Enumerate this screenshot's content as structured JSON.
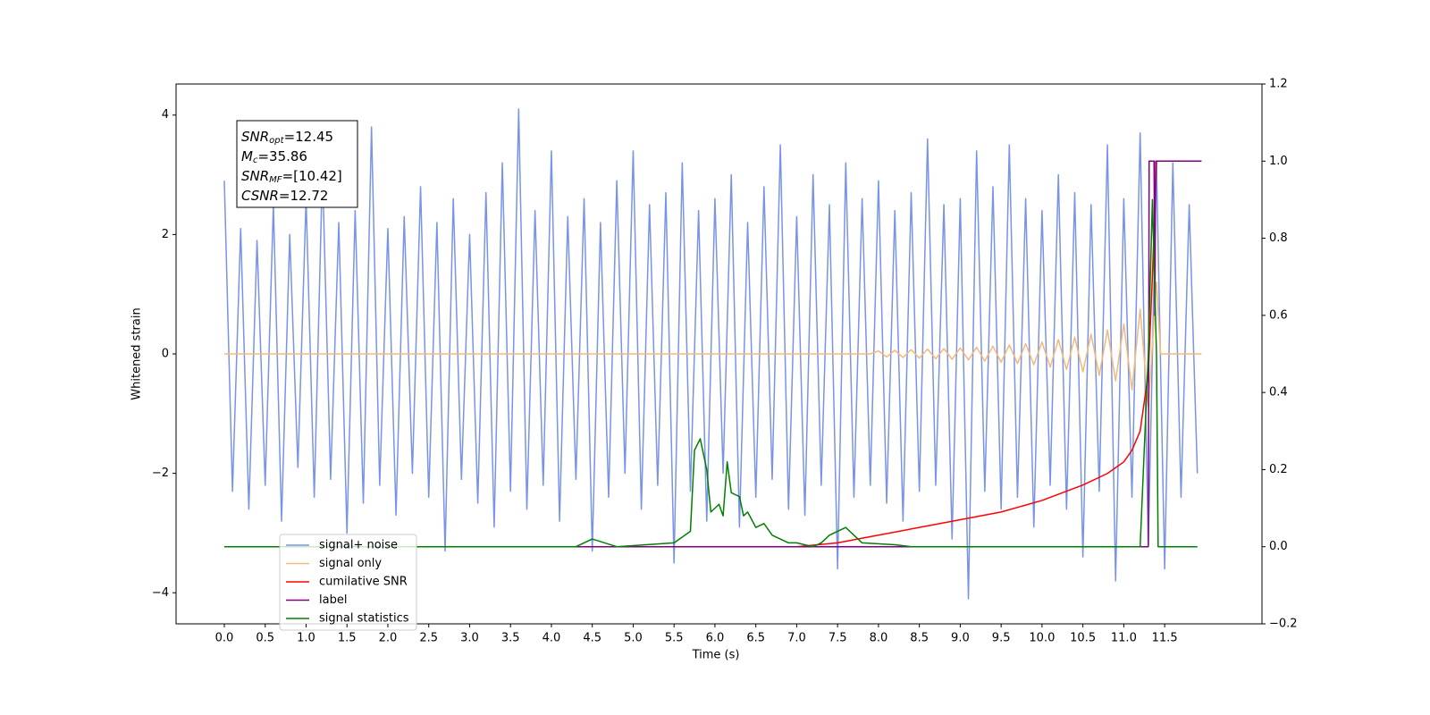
{
  "chart_data": {
    "type": "line",
    "xlabel": "Time (s)",
    "ylabel": "Whitened strain",
    "xlim": [
      -0.59,
      12.69
    ],
    "ylim": [
      -4.52,
      4.52
    ],
    "y2lim": [
      -0.2,
      1.2
    ],
    "xticks": [
      {
        "value": 0,
        "label": "0.0"
      },
      {
        "value": 0.5,
        "label": "0.5"
      },
      {
        "value": 1,
        "label": "1.0"
      },
      {
        "value": 1.5,
        "label": "1.5"
      },
      {
        "value": 2,
        "label": "2.0"
      },
      {
        "value": 2.5,
        "label": "2.5"
      },
      {
        "value": 3,
        "label": "3.0"
      },
      {
        "value": 3.5,
        "label": "3.5"
      },
      {
        "value": 4,
        "label": "4.0"
      },
      {
        "value": 4.5,
        "label": "4.5"
      },
      {
        "value": 5,
        "label": "5.0"
      },
      {
        "value": 5.5,
        "label": "5.5"
      },
      {
        "value": 6,
        "label": "6.0"
      },
      {
        "value": 6.5,
        "label": "6.5"
      },
      {
        "value": 7,
        "label": "7.0"
      },
      {
        "value": 7.5,
        "label": "7.5"
      },
      {
        "value": 8,
        "label": "8.0"
      },
      {
        "value": 8.5,
        "label": "8.5"
      },
      {
        "value": 9,
        "label": "9.0"
      },
      {
        "value": 9.5,
        "label": "9.5"
      },
      {
        "value": 10,
        "label": "10.0"
      },
      {
        "value": 10.5,
        "label": "10.5"
      },
      {
        "value": 11,
        "label": "11.0"
      },
      {
        "value": 11.5,
        "label": "11.5"
      }
    ],
    "yticks": [
      {
        "value": -4,
        "label": "−4"
      },
      {
        "value": -2,
        "label": "−2"
      },
      0,
      2,
      4
    ],
    "y2ticks": [
      {
        "value": -0.2,
        "label": "−0.2"
      },
      {
        "value": 0,
        "label": "0.0"
      },
      0.2,
      0.4,
      0.6,
      0.8,
      {
        "value": 1,
        "label": "1.0"
      },
      1.2
    ],
    "legend": "lower left",
    "annotations": [
      {
        "main": "SNR",
        "sub": "opt",
        "rest": "=12.45"
      },
      {
        "main": "M",
        "sub": "c",
        "rest": "=35.86"
      },
      {
        "main": "SNR",
        "sub": "MF",
        "rest": "=[10.42]"
      },
      {
        "main": "CSNR",
        "rest": "=12.72"
      }
    ],
    "series": [
      {
        "name": "signal+ noise",
        "color": "#7893e8",
        "axis": "y",
        "x": [
          0,
          0.1,
          0.2,
          0.3,
          0.4,
          0.5,
          0.6,
          0.7,
          0.8,
          0.9,
          1,
          1.1,
          1.2,
          1.3,
          1.4,
          1.5,
          1.6,
          1.7,
          1.8,
          1.9,
          2,
          2.1,
          2.2,
          2.3,
          2.4,
          2.5,
          2.6,
          2.7,
          2.8,
          2.9,
          3,
          3.1,
          3.2,
          3.3,
          3.4,
          3.5,
          3.6,
          3.7,
          3.8,
          3.9,
          4,
          4.1,
          4.2,
          4.3,
          4.4,
          4.5,
          4.6,
          4.7,
          4.8,
          4.9,
          5,
          5.1,
          5.2,
          5.3,
          5.4,
          5.5,
          5.6,
          5.7,
          5.8,
          5.9,
          6,
          6.1,
          6.2,
          6.3,
          6.4,
          6.5,
          6.6,
          6.7,
          6.8,
          6.9,
          7,
          7.1,
          7.2,
          7.3,
          7.4,
          7.5,
          7.6,
          7.7,
          7.8,
          7.9,
          8,
          8.1,
          8.2,
          8.3,
          8.4,
          8.5,
          8.6,
          8.7,
          8.8,
          8.9,
          9,
          9.1,
          9.2,
          9.3,
          9.4,
          9.5,
          9.6,
          9.7,
          9.8,
          9.9,
          10,
          10.1,
          10.2,
          10.3,
          10.4,
          10.5,
          10.6,
          10.7,
          10.8,
          10.9,
          11,
          11.1,
          11.2,
          11.3,
          11.4,
          11.5,
          11.6,
          11.7,
          11.8,
          11.9
        ],
        "values": [
          2.9,
          -2.3,
          2.1,
          -2.6,
          1.9,
          -2.2,
          2.5,
          -2.8,
          2.0,
          -1.9,
          2.6,
          -2.4,
          3.1,
          -2.1,
          2.2,
          -3.0,
          2.4,
          -2.5,
          3.8,
          -2.2,
          2.1,
          -2.7,
          2.3,
          -2.0,
          2.8,
          -2.4,
          2.2,
          -3.3,
          2.6,
          -2.1,
          2.0,
          -2.5,
          2.7,
          -2.9,
          3.2,
          -2.3,
          4.1,
          -2.6,
          2.4,
          -2.2,
          3.4,
          -2.8,
          2.3,
          -2.1,
          2.6,
          -3.3,
          2.2,
          -2.4,
          2.9,
          -2.0,
          3.4,
          -2.6,
          2.5,
          -2.2,
          2.7,
          -3.5,
          3.2,
          -2.3,
          2.4,
          -2.8,
          2.6,
          -2.0,
          3.0,
          -2.9,
          2.2,
          -2.4,
          2.8,
          -2.1,
          3.5,
          -2.6,
          2.3,
          -2.7,
          3.0,
          -2.2,
          2.5,
          -3.6,
          3.2,
          -2.4,
          2.6,
          -2.2,
          2.9,
          -2.5,
          2.4,
          -2.8,
          2.7,
          -2.3,
          3.6,
          -2.2,
          2.5,
          -3.1,
          2.6,
          -4.1,
          3.4,
          -2.3,
          2.8,
          -2.6,
          3.5,
          -2.4,
          2.6,
          -2.9,
          2.4,
          -2.2,
          3.0,
          -2.6,
          2.7,
          -3.4,
          2.5,
          -2.3,
          3.5,
          -3.8,
          2.6,
          -2.4,
          3.7,
          -3.2,
          3.2,
          -3.6,
          3.2,
          -2.4,
          2.5,
          -2.0
        ]
      },
      {
        "name": "signal only",
        "color": "#f4b87a",
        "axis": "y",
        "x": [
          0,
          7.9,
          8,
          8.1,
          8.2,
          8.3,
          8.4,
          8.5,
          8.6,
          8.7,
          8.8,
          8.9,
          9,
          9.1,
          9.2,
          9.3,
          9.4,
          9.5,
          9.6,
          9.7,
          9.8,
          9.9,
          10,
          10.1,
          10.2,
          10.3,
          10.4,
          10.5,
          10.6,
          10.7,
          10.8,
          10.9,
          11,
          11.1,
          11.2,
          11.3,
          11.4,
          11.45,
          11.95
        ],
        "values": [
          0,
          0,
          0.05,
          -0.05,
          0.06,
          -0.06,
          0.07,
          -0.07,
          0.08,
          -0.08,
          0.09,
          -0.09,
          0.1,
          -0.1,
          0.11,
          -0.12,
          0.13,
          -0.14,
          0.15,
          -0.16,
          0.17,
          -0.18,
          0.2,
          -0.22,
          0.24,
          -0.26,
          0.28,
          -0.3,
          0.33,
          -0.36,
          0.4,
          -0.45,
          0.5,
          -0.6,
          0.75,
          -0.9,
          1.2,
          0,
          0
        ]
      },
      {
        "name": "cumilative SNR",
        "color": "#ff0000",
        "axis": "y2",
        "x": [
          0,
          7,
          7.5,
          8,
          8.5,
          9,
          9.5,
          10,
          10.5,
          10.8,
          11,
          11.1,
          11.2,
          11.3,
          11.35,
          11.4,
          11.95
        ],
        "values": [
          0,
          0,
          0.01,
          0.03,
          0.05,
          0.07,
          0.09,
          0.12,
          0.16,
          0.19,
          0.22,
          0.25,
          0.3,
          0.45,
          0.7,
          1,
          1
        ]
      },
      {
        "name": "label",
        "color": "#800080",
        "axis": "y2",
        "x": [
          0,
          11.3,
          11.31,
          11.37,
          11.38,
          11.39,
          11.95
        ],
        "values": [
          0,
          0,
          1,
          1,
          0.6,
          1,
          1
        ]
      },
      {
        "name": "signal statistics",
        "color": "#008000",
        "axis": "y2",
        "x": [
          0,
          4.3,
          4.5,
          4.8,
          5.5,
          5.7,
          5.75,
          5.82,
          5.9,
          5.95,
          6.05,
          6.1,
          6.15,
          6.2,
          6.3,
          6.35,
          6.4,
          6.5,
          6.6,
          6.7,
          6.9,
          7.0,
          7.2,
          7.3,
          7.4,
          7.5,
          7.6,
          7.7,
          7.8,
          8.2,
          8.4,
          11.2,
          11.3,
          11.35,
          11.4,
          11.42,
          11.9
        ],
        "values": [
          0,
          0,
          0.02,
          0,
          0.01,
          0.04,
          0.25,
          0.28,
          0.2,
          0.09,
          0.11,
          0.08,
          0.22,
          0.14,
          0.13,
          0.08,
          0.09,
          0.05,
          0.06,
          0.03,
          0.01,
          0.01,
          0,
          0.01,
          0.03,
          0.04,
          0.05,
          0.03,
          0.01,
          0.005,
          0,
          0,
          0.5,
          0.9,
          0.5,
          0,
          0
        ]
      }
    ]
  }
}
